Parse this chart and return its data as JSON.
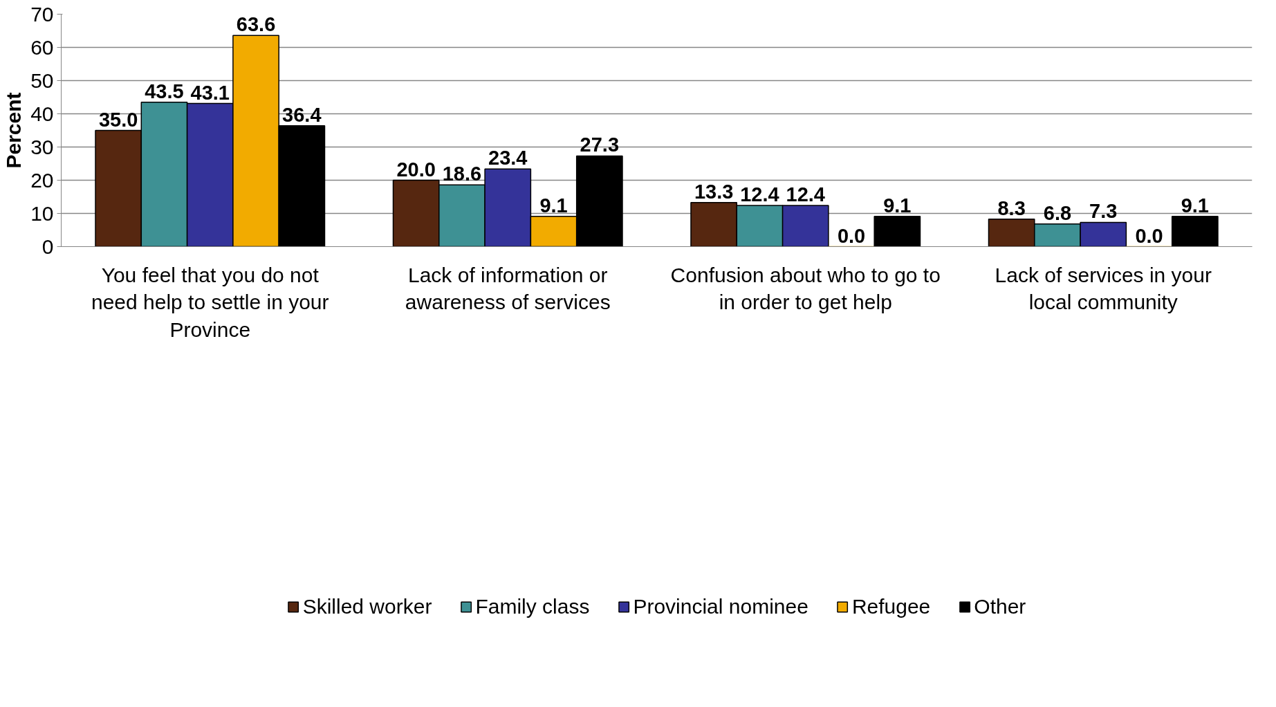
{
  "chart_data": {
    "type": "bar",
    "ylabel": "Percent",
    "categories": [
      "You feel that you do not need help to settle in your Province",
      "Lack of information or awareness of services",
      "Confusion about who to go to in order to get help",
      "Lack of services in your local community"
    ],
    "series": [
      {
        "name": "Skilled worker",
        "color": "#562710",
        "values": [
          35.0,
          20.0,
          13.3,
          8.3
        ],
        "value_labels": [
          "35.0",
          "20.0",
          "13.3",
          "8.3"
        ]
      },
      {
        "name": "Family class",
        "color": "#3e9194",
        "values": [
          43.5,
          18.6,
          12.4,
          6.8
        ],
        "value_labels": [
          "43.5",
          "18.6",
          "12.4",
          "6.8"
        ]
      },
      {
        "name": "Provincial nominee",
        "color": "#343399",
        "values": [
          43.1,
          23.4,
          12.4,
          7.3
        ],
        "value_labels": [
          "43.1",
          "23.4",
          "12.4",
          "7.3"
        ]
      },
      {
        "name": "Refugee",
        "color": "#f2ab00",
        "values": [
          63.6,
          9.1,
          0.0,
          0.0
        ],
        "value_labels": [
          "63.6",
          "9.1",
          "0.0",
          "0.0"
        ]
      },
      {
        "name": "Other",
        "color": "#000000",
        "values": [
          36.4,
          27.3,
          9.1,
          9.1
        ],
        "value_labels": [
          "36.4",
          "27.3",
          "9.1",
          "9.1"
        ]
      }
    ],
    "ylim": [
      0,
      70
    ],
    "yticks": [
      0,
      10,
      20,
      30,
      40,
      50,
      60,
      70
    ],
    "grid": "y",
    "legend": "bottom",
    "data_labels": true
  }
}
